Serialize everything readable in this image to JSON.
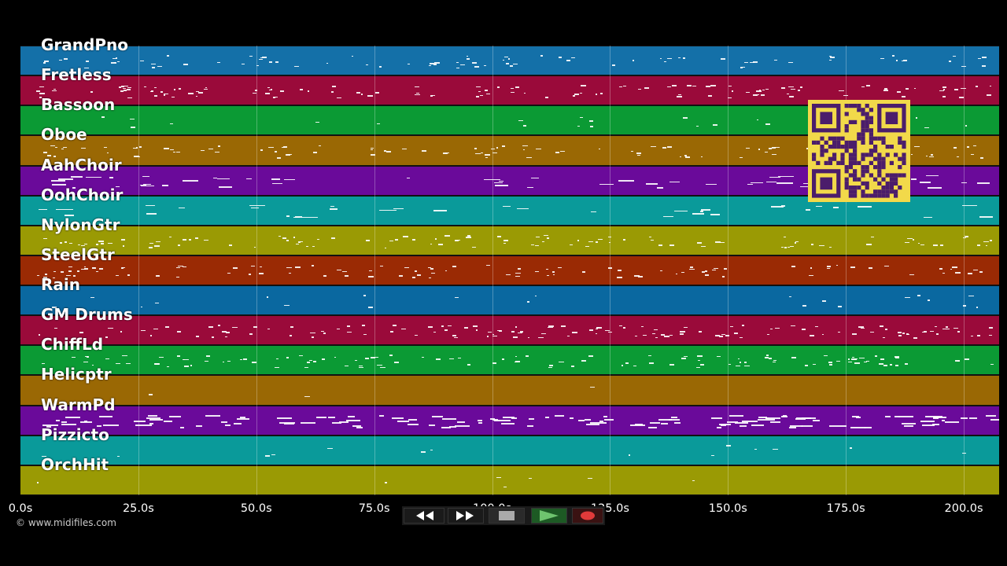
{
  "tracks": [
    {
      "name": "GrandPno",
      "color": "#1470a8"
    },
    {
      "name": "Fretless",
      "color": "#9a0a3a"
    },
    {
      "name": "Bassoon",
      "color": "#0b9a34"
    },
    {
      "name": "Oboe",
      "color": "#9a6804"
    },
    {
      "name": "AahChoir",
      "color": "#6a0a9a"
    },
    {
      "name": "OohChoir",
      "color": "#0a9a9a"
    },
    {
      "name": "NylonGtr",
      "color": "#9a9a04"
    },
    {
      "name": "SteelGtr",
      "color": "#9a2a04"
    },
    {
      "name": "Rain",
      "color": "#0a68a0"
    },
    {
      "name": "GM Drums",
      "color": "#9a0a3a"
    },
    {
      "name": "ChiffLd",
      "color": "#0b9a34"
    },
    {
      "name": "Helicptr",
      "color": "#9a6804"
    },
    {
      "name": "WarmPd",
      "color": "#6a0a9a"
    },
    {
      "name": "Pizzicto",
      "color": "#0a9a9a"
    },
    {
      "name": "OrchHit",
      "color": "#9a9a04"
    }
  ],
  "time_axis": {
    "ticks": [
      "0.0s",
      "25.0s",
      "50.0s",
      "75.0s",
      "100.0s",
      "125.0s",
      "150.0s",
      "175.0s",
      "200.0s"
    ],
    "max_seconds": 207.5
  },
  "copyright": "© www.midifiles.com",
  "controls": {
    "rewind_icon": "rewind-icon",
    "fast_forward_icon": "fast-forward-icon",
    "stop_icon": "stop-icon",
    "play_icon": "play-icon",
    "record_icon": "record-icon"
  },
  "qr_code": {
    "color": "#f2d94a",
    "dark": "#4b1d6b"
  }
}
